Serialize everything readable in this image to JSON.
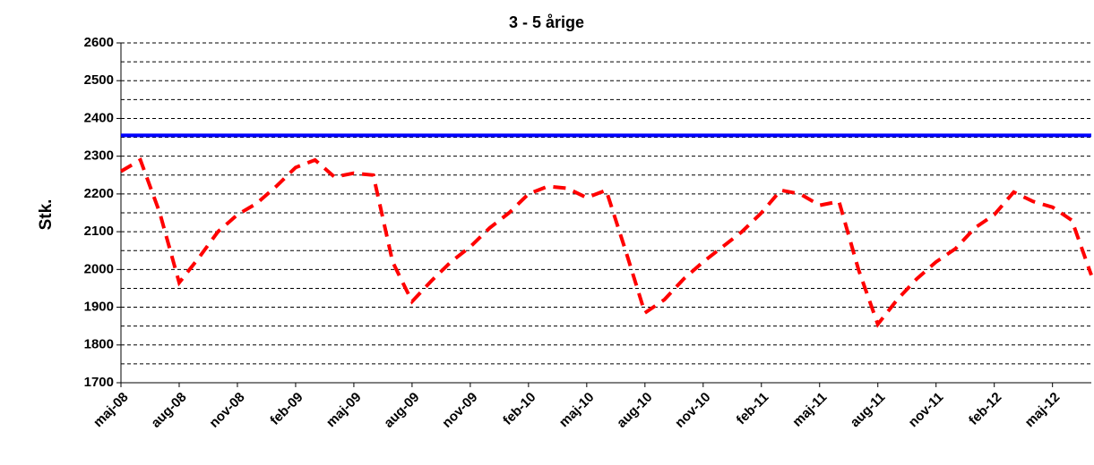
{
  "chart_data": {
    "type": "line",
    "title": "3 - 5 årige",
    "y_label": "Stk.",
    "categories": [
      "maj-08",
      null,
      null,
      "aug-08",
      null,
      null,
      "nov-08",
      null,
      null,
      "feb-09",
      null,
      null,
      "maj-09",
      null,
      null,
      "aug-09",
      null,
      null,
      "nov-09",
      null,
      null,
      "feb-10",
      null,
      null,
      "maj-10",
      null,
      null,
      "aug-10",
      null,
      null,
      "nov-10",
      null,
      null,
      "feb-11",
      null,
      null,
      "maj-11",
      null,
      null,
      "aug-11",
      null,
      null,
      "nov-11",
      null,
      null,
      "feb-12",
      null,
      null,
      "maj-12",
      null,
      null
    ],
    "series": [
      {
        "color": "#ff0000",
        "dashed": true,
        "values": [
          2260,
          2290,
          2150,
          1965,
          2030,
          2100,
          2145,
          2175,
          2220,
          2270,
          2290,
          2245,
          2255,
          2250,
          2020,
          1915,
          1970,
          2020,
          2060,
          2110,
          2150,
          2200,
          2220,
          2215,
          2190,
          2210,
          2050,
          1885,
          1920,
          1975,
          2020,
          2060,
          2100,
          2150,
          2210,
          2200,
          2170,
          2180,
          2000,
          1855,
          1920,
          1975,
          2020,
          2055,
          2110,
          2145,
          2205,
          2180,
          2165,
          2130,
          1985
        ]
      },
      {
        "color": "#0000ff",
        "dashed": false,
        "values": [
          2355,
          2355,
          2355,
          2355,
          2355,
          2355,
          2355,
          2355,
          2355,
          2355,
          2355,
          2355,
          2355,
          2355,
          2355,
          2355,
          2355,
          2355,
          2355,
          2355,
          2355,
          2355,
          2355,
          2355,
          2355,
          2355,
          2355,
          2355,
          2355,
          2355,
          2355,
          2355,
          2355,
          2355,
          2355,
          2355,
          2355,
          2355,
          2355,
          2355,
          2355,
          2355,
          2355,
          2355,
          2355,
          2355,
          2355,
          2355,
          2355,
          2355,
          2355
        ]
      }
    ],
    "ylim": [
      1700,
      2600
    ],
    "yticks": [
      1700,
      1800,
      1900,
      2000,
      2100,
      2200,
      2300,
      2400,
      2500,
      2600
    ],
    "minor_yticks": [
      1750,
      1850,
      1950,
      2050,
      2150,
      2250,
      2350,
      2450,
      2550
    ],
    "grid": true
  }
}
